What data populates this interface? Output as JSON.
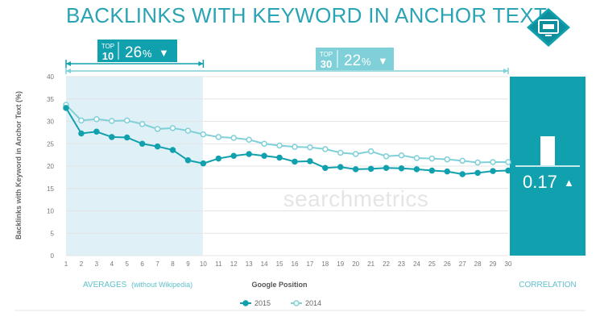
{
  "title": "BACKLINKS WITH KEYWORD IN ANCHOR TEXT",
  "colors": {
    "primary": "#11a0ae",
    "light": "#7fd0d8",
    "title": "#2aa3b5",
    "shade": "#dff1f6",
    "axis_text": "#777777"
  },
  "top10_badge": {
    "top": "TOP",
    "num": "10",
    "value": "26",
    "unit": "%",
    "arrow": "▼"
  },
  "top30_badge": {
    "top": "TOP",
    "num": "30",
    "value": "22",
    "unit": "%",
    "arrow": "▼"
  },
  "correlation": {
    "value": "0.17",
    "arrow": "▲",
    "label": "CORRELATION"
  },
  "averages_label": "AVERAGES",
  "averages_note": "(without Wikipedia)",
  "watermark": "searchmetrics",
  "icon": "monitor-icon",
  "chart_data": {
    "type": "line",
    "title": "BACKLINKS WITH KEYWORD IN ANCHOR TEXT",
    "xlabel": "Google Position",
    "ylabel": "Backlinks with Keyword in Anchor Text (%)",
    "x": [
      1,
      2,
      3,
      4,
      5,
      6,
      7,
      8,
      9,
      10,
      11,
      12,
      13,
      14,
      15,
      16,
      17,
      18,
      19,
      20,
      21,
      22,
      23,
      24,
      25,
      26,
      27,
      28,
      29,
      30
    ],
    "ylim": [
      0,
      40
    ],
    "yticks": [
      0,
      5,
      10,
      15,
      20,
      25,
      30,
      35,
      40
    ],
    "series": [
      {
        "name": "2015",
        "color": "#11a0ae",
        "values": [
          33.0,
          27.3,
          27.7,
          26.5,
          26.4,
          25.0,
          24.4,
          23.6,
          21.3,
          20.6,
          21.7,
          22.3,
          22.7,
          22.3,
          21.9,
          21.0,
          21.1,
          19.6,
          19.8,
          19.3,
          19.4,
          19.6,
          19.5,
          19.3,
          19.0,
          18.8,
          18.2,
          18.5,
          18.9,
          19.0
        ]
      },
      {
        "name": "2014",
        "color": "#7fd0d8",
        "values": [
          33.7,
          30.2,
          30.5,
          30.1,
          30.2,
          29.4,
          28.3,
          28.5,
          27.9,
          27.1,
          26.5,
          26.3,
          25.9,
          25.0,
          24.6,
          24.3,
          24.2,
          23.8,
          23.0,
          22.7,
          23.3,
          22.2,
          22.4,
          21.8,
          21.7,
          21.5,
          21.2,
          20.8,
          20.9,
          20.9
        ]
      }
    ],
    "grid": true,
    "legend": "bottom-center"
  }
}
